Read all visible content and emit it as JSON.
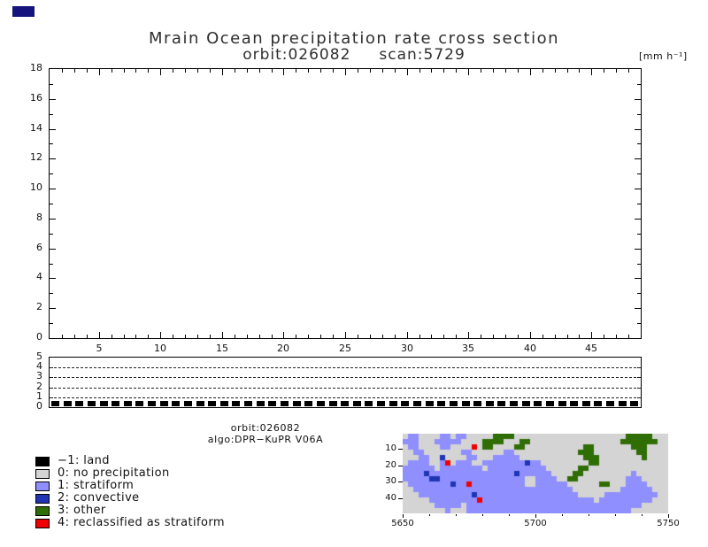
{
  "chart_data": [
    {
      "id": "precip-cross-section",
      "type": "line",
      "title": "Mrain Ocean precipitation rate cross section",
      "subtitle": "orbit:026082     scan:5729",
      "units": "[mm h⁻¹]",
      "xlim": [
        1,
        49
      ],
      "ylim": [
        0,
        18
      ],
      "xticks": [
        5,
        10,
        15,
        20,
        25,
        30,
        35,
        40,
        45
      ],
      "yticks": [
        0,
        2,
        4,
        6,
        8,
        10,
        12,
        14,
        16,
        18
      ],
      "grid": false,
      "series": []
    },
    {
      "id": "flag-strip",
      "type": "line",
      "xlim": [
        1,
        49
      ],
      "ylim": [
        0,
        5
      ],
      "yticks": [
        0,
        1,
        2,
        3,
        4,
        5
      ],
      "dashed_levels": [
        1,
        2,
        3,
        4
      ],
      "land_markers": {
        "count": 49,
        "value": -1
      }
    },
    {
      "id": "rain-type-map",
      "type": "heatmap",
      "xlim": [
        5650,
        5750
      ],
      "ylim": [
        1,
        49
      ],
      "xticks": [
        5650,
        5700,
        5750
      ],
      "yticks": [
        10,
        20,
        30,
        40
      ],
      "palette": {
        ".": "#d4d4d4",
        "1": "#8f8fff",
        "2": "#1f35b4",
        "3": "#2f6d05",
        "4": "#f00000"
      },
      "grid_rows": [
        [
          ".11....11.",
          "11.....333",
          "3.........",
          "..........",
          "..33333..."
        ],
        [
          "111...1111",
          "1....3333.",
          "..33......",
          "..........",
          ".3333333.."
        ],
        [
          ".11....11.",
          "...4.33...",
          ".33.......",
          "....33....",
          "...333...."
        ],
        [
          "..11......",
          ".11......1",
          "1.........",
          "...333....",
          "....33...."
        ],
        [
          "...11..2..",
          "..11...111",
          "11........",
          "....333...",
          ".....3...."
        ],
        [
          ".1111..14.",
          "111..11111",
          "111211....",
          ".....33...",
          ".........."
        ],
        [
          "111111.111",
          "11111.1111",
          "1111111...",
          "...33.....",
          ".........."
        ],
        [
          "1111211111",
          "1111111111",
          "12111111..",
          "..33......",
          "...1......"
        ],
        [
          "1111122111",
          "1111111111",
          "111..1111.",
          ".33.......",
          "..111....."
        ],
        [
          ".111111112",
          "1141111111",
          "111..11111",
          "1......33.",
          "..1111...."
        ],
        [
          "..11111111",
          "1111111111",
          "1111111111",
          "11........",
          ".111111..."
        ],
        [
          "...1111111",
          "1112111111",
          "1111111111",
          "111.....11",
          "11111111.."
        ],
        [
          ".....11111",
          "1111411111",
          "1111111111",
          "111111.111",
          "1111111..."
        ],
        [
          "......1111",
          "1.11111111",
          "1111111111",
          "1111111111",
          "11111....."
        ],
        [
          "........1.",
          "..11111111",
          "1111111111",
          "1111111111",
          "111......."
        ]
      ]
    }
  ],
  "caption": {
    "orbit": "orbit:026082",
    "algo": "algo:DPR−KuPR V06A"
  },
  "legend": {
    "items": [
      {
        "value": -1,
        "label": "−1: land",
        "color": "#000000"
      },
      {
        "value": 0,
        "label": "0: no precipitation",
        "color": "#d4d4d4"
      },
      {
        "value": 1,
        "label": "1: stratiform",
        "color": "#8f8fff"
      },
      {
        "value": 2,
        "label": "2: convective",
        "color": "#1f35b4"
      },
      {
        "value": 3,
        "label": "3: other",
        "color": "#2f6d05"
      },
      {
        "value": 4,
        "label": "4: reclassified as stratiform",
        "color": "#f00000"
      }
    ]
  },
  "decor": {
    "corner_box_color": "#14147c"
  }
}
